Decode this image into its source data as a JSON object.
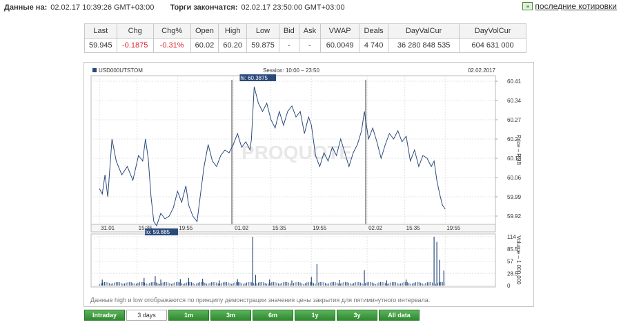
{
  "header": {
    "data_label": "Данные на:",
    "data_value": "02.02.17 10:39:26 GMT+03:00",
    "end_label": "Торги закончатся:",
    "end_value": "02.02.17 23:50:00 GMT+03:00",
    "quotes_link": "последние котировки",
    "quotes_icon": "quotes-icon"
  },
  "quote_table": {
    "headers": [
      "Last",
      "Chg",
      "Chg%",
      "Open",
      "High",
      "Low",
      "Bid",
      "Ask",
      "VWAP",
      "Deals",
      "DayValCur",
      "DayVolCur"
    ],
    "values": [
      "59.945",
      "-0.1875",
      "-0.31%",
      "60.02",
      "60.20",
      "59.875",
      "-",
      "-",
      "60.0049",
      "4 740",
      "36 280 848 535",
      "604 631 000"
    ]
  },
  "chart_header": {
    "ticker": "USD000UTSTOM",
    "session": "Session: 10:00 – 23:50",
    "date": "02.02.2017"
  },
  "note": "Данные high и low отображаются по принципу демонстрации значения цены закрытия для пятиминутного интервала.",
  "buttons": [
    "Intraday",
    "3 days",
    "1m",
    "3m",
    "6m",
    "1y",
    "3y",
    "All data"
  ],
  "active_button": "3 days",
  "colors": {
    "line": "#2a4a7a",
    "negative": "#e0222b",
    "button": "#3f9a3f"
  },
  "chart_data": {
    "type": "line",
    "price": {
      "ylabel": "Price – RUB",
      "yticks": [
        60.41,
        60.34,
        60.27,
        60.2,
        60.13,
        60.06,
        59.99,
        59.92
      ],
      "ylim": [
        59.89,
        60.43
      ],
      "hi_label": "hi: 60.3875",
      "lo_label": "lo: 59.885",
      "series": [
        {
          "x": 0,
          "y": 60.02
        },
        {
          "x": 0.1,
          "y": 60.0
        },
        {
          "x": 0.2,
          "y": 60.07
        },
        {
          "x": 0.3,
          "y": 59.99
        },
        {
          "x": 0.45,
          "y": 60.2
        },
        {
          "x": 0.6,
          "y": 60.12
        },
        {
          "x": 0.8,
          "y": 60.07
        },
        {
          "x": 1.0,
          "y": 60.1
        },
        {
          "x": 1.2,
          "y": 60.05
        },
        {
          "x": 1.4,
          "y": 60.14
        },
        {
          "x": 1.55,
          "y": 60.12
        },
        {
          "x": 1.65,
          "y": 60.2
        },
        {
          "x": 1.75,
          "y": 60.13
        },
        {
          "x": 1.85,
          "y": 59.99
        },
        {
          "x": 1.95,
          "y": 59.9
        },
        {
          "x": 2.05,
          "y": 59.885
        },
        {
          "x": 2.2,
          "y": 59.93
        },
        {
          "x": 2.35,
          "y": 59.91
        },
        {
          "x": 2.5,
          "y": 59.92
        },
        {
          "x": 2.65,
          "y": 59.95
        },
        {
          "x": 2.8,
          "y": 60.01
        },
        {
          "x": 2.95,
          "y": 59.97
        },
        {
          "x": 3.1,
          "y": 60.03
        },
        {
          "x": 3.2,
          "y": 59.96
        },
        {
          "x": 3.35,
          "y": 59.92
        },
        {
          "x": 3.5,
          "y": 59.9
        },
        {
          "x": 3.65,
          "y": 60.02
        },
        {
          "x": 3.75,
          "y": 60.1
        },
        {
          "x": 3.9,
          "y": 60.18
        },
        {
          "x": 4.05,
          "y": 60.12
        },
        {
          "x": 4.2,
          "y": 60.1
        },
        {
          "x": 4.35,
          "y": 60.14
        },
        {
          "x": 4.5,
          "y": 60.16
        },
        {
          "x": 4.65,
          "y": 60.15
        },
        {
          "x": 4.8,
          "y": 60.18
        },
        {
          "x": 4.95,
          "y": 60.22
        },
        {
          "x": 5.1,
          "y": 60.17
        },
        {
          "x": 5.25,
          "y": 60.19
        },
        {
          "x": 5.4,
          "y": 60.16
        },
        {
          "x": 5.45,
          "y": 60.2
        },
        {
          "x": 5.55,
          "y": 60.39
        },
        {
          "x": 5.7,
          "y": 60.33
        },
        {
          "x": 5.85,
          "y": 60.3
        },
        {
          "x": 6.0,
          "y": 60.33
        },
        {
          "x": 6.15,
          "y": 60.27
        },
        {
          "x": 6.3,
          "y": 60.24
        },
        {
          "x": 6.45,
          "y": 60.3
        },
        {
          "x": 6.6,
          "y": 60.25
        },
        {
          "x": 6.75,
          "y": 60.3
        },
        {
          "x": 6.9,
          "y": 60.32
        },
        {
          "x": 7.05,
          "y": 60.28
        },
        {
          "x": 7.2,
          "y": 60.3
        },
        {
          "x": 7.35,
          "y": 60.22
        },
        {
          "x": 7.5,
          "y": 60.28
        },
        {
          "x": 7.6,
          "y": 60.25
        },
        {
          "x": 7.75,
          "y": 60.14
        },
        {
          "x": 7.9,
          "y": 60.1
        },
        {
          "x": 8.05,
          "y": 60.15
        },
        {
          "x": 8.2,
          "y": 60.12
        },
        {
          "x": 8.35,
          "y": 60.17
        },
        {
          "x": 8.5,
          "y": 60.14
        },
        {
          "x": 8.65,
          "y": 60.2
        },
        {
          "x": 8.8,
          "y": 60.15
        },
        {
          "x": 8.95,
          "y": 60.1
        },
        {
          "x": 9.1,
          "y": 60.15
        },
        {
          "x": 9.25,
          "y": 60.18
        },
        {
          "x": 9.4,
          "y": 60.23
        },
        {
          "x": 9.5,
          "y": 60.3
        },
        {
          "x": 9.65,
          "y": 60.2
        },
        {
          "x": 9.8,
          "y": 60.24
        },
        {
          "x": 9.95,
          "y": 60.19
        },
        {
          "x": 10.1,
          "y": 60.13
        },
        {
          "x": 10.25,
          "y": 60.18
        },
        {
          "x": 10.4,
          "y": 60.22
        },
        {
          "x": 10.55,
          "y": 60.2
        },
        {
          "x": 10.7,
          "y": 60.23
        },
        {
          "x": 10.85,
          "y": 60.19
        },
        {
          "x": 11.0,
          "y": 60.21
        },
        {
          "x": 11.15,
          "y": 60.12
        },
        {
          "x": 11.3,
          "y": 60.16
        },
        {
          "x": 11.45,
          "y": 60.1
        },
        {
          "x": 11.6,
          "y": 60.14
        },
        {
          "x": 11.75,
          "y": 60.13
        },
        {
          "x": 11.9,
          "y": 60.1
        },
        {
          "x": 12.0,
          "y": 60.12
        },
        {
          "x": 12.1,
          "y": 60.05
        },
        {
          "x": 12.2,
          "y": 60.0
        },
        {
          "x": 12.3,
          "y": 59.96
        },
        {
          "x": 12.4,
          "y": 59.945
        }
      ]
    },
    "volume": {
      "ylabel": "Volume – 1 000 000",
      "yticks": [
        114,
        85.5,
        57,
        28.5,
        0
      ],
      "ylim": [
        0,
        114
      ],
      "spikes": [
        {
          "x": 0.1,
          "y": 14
        },
        {
          "x": 1.6,
          "y": 18
        },
        {
          "x": 2.0,
          "y": 22
        },
        {
          "x": 2.2,
          "y": 14
        },
        {
          "x": 2.9,
          "y": 15
        },
        {
          "x": 3.2,
          "y": 18
        },
        {
          "x": 3.7,
          "y": 16
        },
        {
          "x": 4.3,
          "y": 12
        },
        {
          "x": 4.95,
          "y": 15
        },
        {
          "x": 5.5,
          "y": 114
        },
        {
          "x": 5.6,
          "y": 25
        },
        {
          "x": 6.1,
          "y": 14
        },
        {
          "x": 6.9,
          "y": 12
        },
        {
          "x": 7.6,
          "y": 20
        },
        {
          "x": 7.8,
          "y": 50
        },
        {
          "x": 8.6,
          "y": 13
        },
        {
          "x": 9.5,
          "y": 36
        },
        {
          "x": 10.3,
          "y": 12
        },
        {
          "x": 11.0,
          "y": 14
        },
        {
          "x": 12.0,
          "y": 114
        },
        {
          "x": 12.1,
          "y": 102
        },
        {
          "x": 12.2,
          "y": 60
        },
        {
          "x": 12.35,
          "y": 35
        }
      ],
      "baseline": 6
    },
    "xticks": [
      {
        "x": 0,
        "label": "31.01"
      },
      {
        "x": 1.35,
        "label": "15:35"
      },
      {
        "x": 2.8,
        "label": "19:55"
      },
      {
        "x": 4.8,
        "label": "01.02"
      },
      {
        "x": 6.15,
        "label": "15:35"
      },
      {
        "x": 7.6,
        "label": "19:55"
      },
      {
        "x": 9.6,
        "label": "02.02"
      },
      {
        "x": 10.95,
        "label": "15:35"
      },
      {
        "x": 12.4,
        "label": "19:55"
      }
    ],
    "xlim": [
      -0.3,
      14.2
    ],
    "day_separators": [
      4.75,
      9.55
    ],
    "watermark": "PROQUOTE"
  }
}
